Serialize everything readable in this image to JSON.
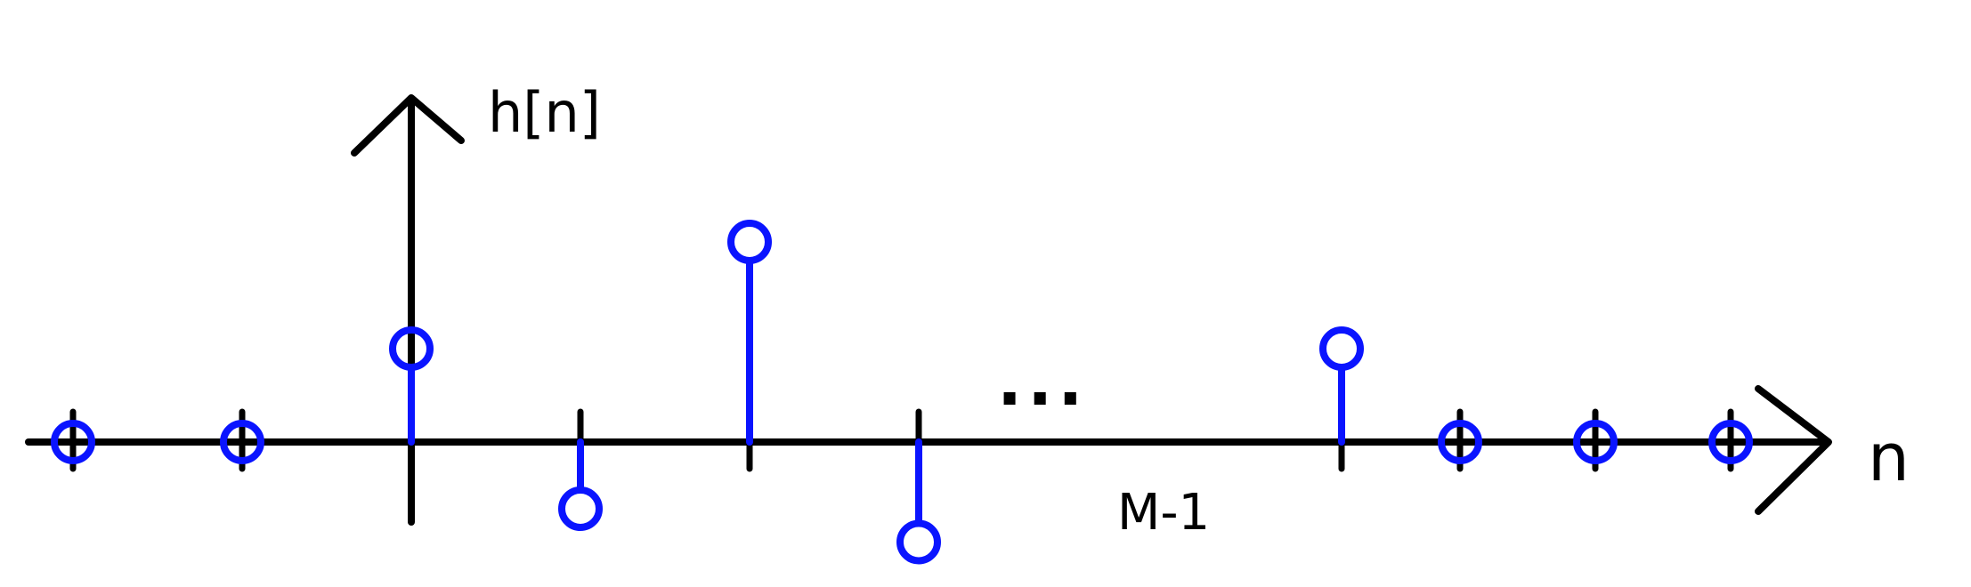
{
  "chart_data": {
    "type": "stem",
    "ylabel": "h[n]",
    "xlabel": "n",
    "tick_labels": [
      {
        "x": 5.5,
        "text": "M-1"
      }
    ],
    "ellipsis": {
      "x": 4.2,
      "text": "..."
    },
    "series": [
      {
        "color": "#0a14ff",
        "marker": "circle",
        "x": [
          -2,
          -1,
          0,
          1,
          2,
          3,
          5.5,
          6.2,
          7.0,
          7.8
        ],
        "y": [
          0,
          0,
          0.7,
          -0.5,
          1.5,
          -0.75,
          0.7,
          0,
          0,
          0
        ]
      }
    ],
    "axis_color": "#000000",
    "xlim": [
      -2.6,
      9.1
    ],
    "ylim": [
      -0.9,
      2.5
    ]
  }
}
